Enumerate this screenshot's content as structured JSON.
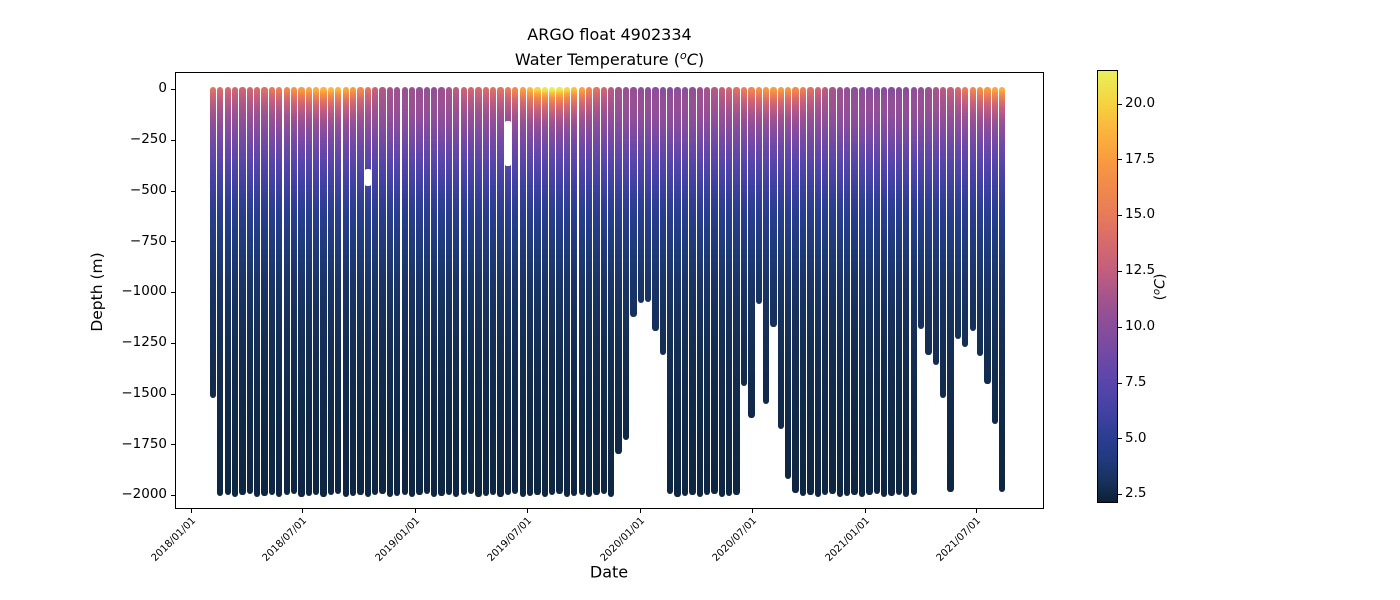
{
  "title": {
    "line1": "ARGO float 4902334",
    "line2_prefix": "Water Temperature (",
    "line2_sup": "o",
    "line2_unit": "C",
    "line2_suffix": ")"
  },
  "y_axis": {
    "label": "Depth (m)",
    "ticks": [
      {
        "label": "0",
        "depth": 0
      },
      {
        "label": "−250",
        "depth": 250
      },
      {
        "label": "−500",
        "depth": 500
      },
      {
        "label": "−750",
        "depth": 750
      },
      {
        "label": "−1000",
        "depth": 1000
      },
      {
        "label": "−1250",
        "depth": 1250
      },
      {
        "label": "−1500",
        "depth": 1500
      },
      {
        "label": "−1750",
        "depth": 1750
      },
      {
        "label": "−2000",
        "depth": 2000
      }
    ]
  },
  "x_axis": {
    "label": "Date",
    "ticks": [
      {
        "label": "2018/01/01",
        "day": 0
      },
      {
        "label": "2018/07/01",
        "day": 181
      },
      {
        "label": "2019/01/01",
        "day": 365
      },
      {
        "label": "2019/07/01",
        "day": 546
      },
      {
        "label": "2020/01/01",
        "day": 730
      },
      {
        "label": "2020/07/01",
        "day": 912
      },
      {
        "label": "2021/01/01",
        "day": 1096
      },
      {
        "label": "2021/07/01",
        "day": 1277
      }
    ]
  },
  "colorbar": {
    "label_prefix": "(",
    "label_sup": "o",
    "label_unit": "C",
    "label_suffix": ")",
    "vmin": 2.1,
    "vmax": 21.5,
    "ticks": [
      {
        "label": "2.5",
        "value": 2.5
      },
      {
        "label": "5.0",
        "value": 5.0
      },
      {
        "label": "7.5",
        "value": 7.5
      },
      {
        "label": "10.0",
        "value": 10.0
      },
      {
        "label": "12.5",
        "value": 12.5
      },
      {
        "label": "15.0",
        "value": 15.0
      },
      {
        "label": "17.5",
        "value": 17.5
      },
      {
        "label": "20.0",
        "value": 20.0
      }
    ],
    "colormap": [
      {
        "value": 2.1,
        "color": "#0c2135"
      },
      {
        "value": 3.0,
        "color": "#16315b"
      },
      {
        "value": 4.0,
        "color": "#203a7d"
      },
      {
        "value": 5.0,
        "color": "#2b3d91"
      },
      {
        "value": 6.0,
        "color": "#3f41a0"
      },
      {
        "value": 7.5,
        "color": "#5a45ab"
      },
      {
        "value": 9.0,
        "color": "#764aa3"
      },
      {
        "value": 10.0,
        "color": "#8a4d9b"
      },
      {
        "value": 11.0,
        "color": "#9d5290"
      },
      {
        "value": 12.5,
        "color": "#c25e7e"
      },
      {
        "value": 14.0,
        "color": "#d96d69"
      },
      {
        "value": 15.0,
        "color": "#e87a5a"
      },
      {
        "value": 16.5,
        "color": "#f28c49"
      },
      {
        "value": 17.5,
        "color": "#f89c3f"
      },
      {
        "value": 18.8,
        "color": "#fbb43e"
      },
      {
        "value": 20.0,
        "color": "#f5d23f"
      },
      {
        "value": 21.5,
        "color": "#e9f05a"
      }
    ]
  },
  "chart_data": {
    "type": "scatter",
    "title": "ARGO float 4902334 — Water Temperature (°C)",
    "xlabel": "Date",
    "ylabel": "Depth (m)",
    "ylim": [
      -2050,
      30
    ],
    "x_range_days": [
      0,
      1318
    ],
    "deep_water_temp": 2.35,
    "profile_columns": [
      "days_since_2018_01_01",
      "surface_temp_C",
      "bottom_depth_m"
    ],
    "profiles": [
      [
        34,
        14.3,
        -1500
      ],
      [
        46,
        14.0,
        -1985
      ],
      [
        58,
        13.6,
        -1978
      ],
      [
        70,
        13.3,
        -1990
      ],
      [
        82,
        13.2,
        -1982
      ],
      [
        94,
        13.4,
        -1975
      ],
      [
        106,
        13.7,
        -1988
      ],
      [
        118,
        14.2,
        -1985
      ],
      [
        130,
        14.8,
        -1978
      ],
      [
        142,
        15.3,
        -1990
      ],
      [
        154,
        16.0,
        -1982
      ],
      [
        166,
        16.8,
        -1975
      ],
      [
        178,
        17.4,
        -1988
      ],
      [
        190,
        18.0,
        -1985
      ],
      [
        202,
        18.5,
        -1978
      ],
      [
        214,
        18.8,
        -1990
      ],
      [
        226,
        19.0,
        -1982
      ],
      [
        238,
        18.7,
        -1975
      ],
      [
        250,
        18.2,
        -1988
      ],
      [
        262,
        17.4,
        -1985
      ],
      [
        274,
        16.3,
        -1978
      ],
      [
        286,
        14.5,
        -1990
      ],
      [
        298,
        12.8,
        -1982
      ],
      [
        310,
        11.8,
        -1975
      ],
      [
        322,
        11.3,
        -1988
      ],
      [
        334,
        11.0,
        -1985
      ],
      [
        346,
        10.8,
        -1978
      ],
      [
        358,
        10.7,
        -1990
      ],
      [
        370,
        10.6,
        -1982
      ],
      [
        382,
        10.5,
        -1975
      ],
      [
        394,
        10.4,
        -1988
      ],
      [
        406,
        10.8,
        -1985
      ],
      [
        418,
        11.4,
        -1978
      ],
      [
        430,
        12.2,
        -1990
      ],
      [
        442,
        13.0,
        -1982
      ],
      [
        454,
        13.3,
        -1975
      ],
      [
        466,
        13.5,
        -1988
      ],
      [
        478,
        13.8,
        -1985
      ],
      [
        490,
        14.2,
        -1978
      ],
      [
        502,
        14.6,
        -1990
      ],
      [
        514,
        15.0,
        -1982
      ],
      [
        526,
        16.2,
        -1975
      ],
      [
        538,
        17.6,
        -1988
      ],
      [
        550,
        19.0,
        -1985
      ],
      [
        562,
        20.2,
        -1978
      ],
      [
        574,
        21.0,
        -1990
      ],
      [
        586,
        21.3,
        -1982
      ],
      [
        598,
        21.0,
        -1975
      ],
      [
        610,
        20.3,
        -1988
      ],
      [
        622,
        19.2,
        -1985
      ],
      [
        634,
        17.8,
        -1978
      ],
      [
        646,
        16.2,
        -1990
      ],
      [
        658,
        14.6,
        -1982
      ],
      [
        670,
        13.2,
        -1975
      ],
      [
        682,
        12.1,
        -1988
      ],
      [
        694,
        11.3,
        -1780
      ],
      [
        706,
        10.8,
        -1710
      ],
      [
        718,
        10.5,
        -1105
      ],
      [
        730,
        10.3,
        -1035
      ],
      [
        742,
        10.2,
        -1030
      ],
      [
        754,
        10.1,
        -1170
      ],
      [
        766,
        10.0,
        -1290
      ],
      [
        778,
        10.0,
        -1975
      ],
      [
        790,
        10.1,
        -1988
      ],
      [
        802,
        10.2,
        -1985
      ],
      [
        814,
        10.4,
        -1978
      ],
      [
        826,
        10.8,
        -1990
      ],
      [
        838,
        11.3,
        -1982
      ],
      [
        850,
        11.9,
        -1975
      ],
      [
        862,
        12.6,
        -1988
      ],
      [
        874,
        13.4,
        -1985
      ],
      [
        886,
        14.3,
        -1978
      ],
      [
        898,
        15.2,
        -1445
      ],
      [
        910,
        16.0,
        -1600
      ],
      [
        922,
        16.7,
        -1040
      ],
      [
        934,
        17.2,
        -1530
      ],
      [
        946,
        17.5,
        -1150
      ],
      [
        958,
        17.4,
        -1655
      ],
      [
        970,
        17.0,
        -1900
      ],
      [
        982,
        16.3,
        -1972
      ],
      [
        994,
        15.4,
        -1985
      ],
      [
        1006,
        14.3,
        -1978
      ],
      [
        1018,
        13.2,
        -1990
      ],
      [
        1030,
        12.2,
        -1982
      ],
      [
        1042,
        11.4,
        -1975
      ],
      [
        1054,
        10.8,
        -1988
      ],
      [
        1066,
        10.4,
        -1985
      ],
      [
        1078,
        10.2,
        -1978
      ],
      [
        1090,
        10.0,
        -1990
      ],
      [
        1102,
        9.9,
        -1982
      ],
      [
        1114,
        9.9,
        -1975
      ],
      [
        1126,
        9.8,
        -1988
      ],
      [
        1138,
        9.8,
        -1985
      ],
      [
        1150,
        9.9,
        -1978
      ],
      [
        1162,
        10.0,
        -1990
      ],
      [
        1174,
        10.2,
        -1982
      ],
      [
        1186,
        10.5,
        -1160
      ],
      [
        1198,
        10.9,
        -1290
      ],
      [
        1210,
        11.4,
        -1340
      ],
      [
        1222,
        12.0,
        -1500
      ],
      [
        1234,
        12.8,
        -1965
      ],
      [
        1246,
        13.6,
        -1210
      ],
      [
        1258,
        15.0,
        -1250
      ],
      [
        1270,
        16.0,
        -1170
      ],
      [
        1282,
        16.8,
        -1295
      ],
      [
        1294,
        17.3,
        -1435
      ],
      [
        1306,
        18.0,
        -1630
      ],
      [
        1318,
        18.5,
        -1965
      ]
    ],
    "missing_data_gaps": [
      {
        "profile_index": 21,
        "depth_from": 390,
        "depth_to": 475
      },
      {
        "profile_index": 40,
        "depth_from": 150,
        "depth_to": 375
      }
    ]
  }
}
